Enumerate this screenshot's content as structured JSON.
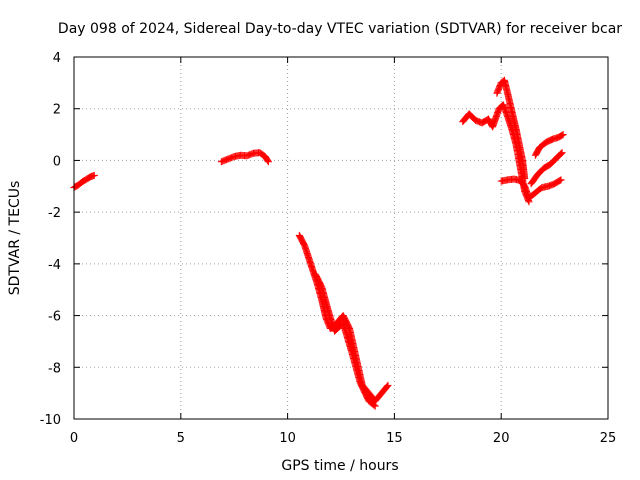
{
  "chart_data": {
    "type": "scatter",
    "title": "Day 098 of 2024, Sidereal Day-to-day VTEC variation (SDTVAR) for receiver bcar",
    "xlabel": "GPS time / hours",
    "ylabel": "SDTVAR / TECUs",
    "xlim": [
      0,
      25
    ],
    "ylim": [
      -10,
      4
    ],
    "xticks": [
      "0",
      "5",
      "10",
      "15",
      "20",
      "25"
    ],
    "yticks": [
      "4",
      "2",
      "0",
      "-2",
      "-4",
      "-6",
      "-8",
      "-10"
    ],
    "grid": true,
    "marker": "plus",
    "color": "#ff0000",
    "series": [
      {
        "name": "bcar",
        "segments": [
          [
            [
              0.0,
              -1.05
            ],
            [
              0.2,
              -0.95
            ],
            [
              0.4,
              -0.82
            ],
            [
              0.6,
              -0.72
            ],
            [
              0.8,
              -0.62
            ],
            [
              0.95,
              -0.58
            ]
          ],
          [
            [
              6.9,
              -0.05
            ],
            [
              7.2,
              0.05
            ],
            [
              7.5,
              0.15
            ],
            [
              7.8,
              0.2
            ],
            [
              8.1,
              0.18
            ],
            [
              8.4,
              0.28
            ],
            [
              8.7,
              0.3
            ],
            [
              8.95,
              0.15
            ],
            [
              9.1,
              -0.05
            ]
          ],
          [
            [
              10.55,
              -2.9
            ],
            [
              10.8,
              -3.3
            ],
            [
              11.0,
              -3.8
            ],
            [
              11.2,
              -4.3
            ],
            [
              11.4,
              -4.8
            ],
            [
              11.6,
              -5.4
            ],
            [
              11.8,
              -6.1
            ],
            [
              12.0,
              -6.5
            ],
            [
              12.3,
              -6.3
            ],
            [
              12.6,
              -6.0
            ],
            [
              12.9,
              -6.5
            ],
            [
              13.2,
              -7.6
            ],
            [
              13.5,
              -8.7
            ],
            [
              13.8,
              -9.0
            ],
            [
              14.1,
              -9.3
            ],
            [
              14.4,
              -9.0
            ],
            [
              14.7,
              -8.7
            ]
          ],
          [
            [
              11.3,
              -4.4
            ],
            [
              11.6,
              -4.9
            ],
            [
              11.9,
              -5.8
            ],
            [
              12.2,
              -6.6
            ],
            [
              12.6,
              -6.3
            ],
            [
              13.0,
              -7.4
            ],
            [
              13.4,
              -8.6
            ],
            [
              13.8,
              -9.3
            ],
            [
              14.1,
              -9.5
            ]
          ],
          [
            [
              18.2,
              1.5
            ],
            [
              18.5,
              1.8
            ],
            [
              18.8,
              1.55
            ],
            [
              19.1,
              1.45
            ],
            [
              19.4,
              1.6
            ],
            [
              19.6,
              1.3
            ],
            [
              19.9,
              2.0
            ],
            [
              20.1,
              2.15
            ],
            [
              20.3,
              1.7
            ],
            [
              20.5,
              1.2
            ],
            [
              20.7,
              0.6
            ],
            [
              20.9,
              -0.3
            ],
            [
              21.1,
              -1.2
            ],
            [
              21.3,
              -1.6
            ]
          ],
          [
            [
              19.8,
              2.6
            ],
            [
              20.0,
              3.0
            ],
            [
              20.15,
              3.1
            ],
            [
              20.3,
              2.6
            ],
            [
              20.5,
              1.9
            ],
            [
              20.7,
              1.2
            ],
            [
              20.85,
              0.6
            ],
            [
              21.0,
              0.0
            ],
            [
              21.1,
              -0.7
            ]
          ],
          [
            [
              20.0,
              -0.8
            ],
            [
              20.3,
              -0.75
            ],
            [
              20.6,
              -0.72
            ],
            [
              20.9,
              -0.78
            ],
            [
              21.1,
              -1.0
            ],
            [
              21.3,
              -1.45
            ],
            [
              21.6,
              -1.25
            ],
            [
              21.9,
              -1.05
            ],
            [
              22.2,
              -1.0
            ],
            [
              22.5,
              -0.9
            ],
            [
              22.8,
              -0.75
            ]
          ],
          [
            [
              21.4,
              -0.9
            ],
            [
              21.7,
              -0.55
            ],
            [
              22.0,
              -0.3
            ],
            [
              22.3,
              -0.15
            ],
            [
              22.6,
              0.1
            ],
            [
              22.85,
              0.3
            ]
          ],
          [
            [
              21.6,
              0.2
            ],
            [
              21.8,
              0.5
            ],
            [
              22.1,
              0.7
            ],
            [
              22.4,
              0.82
            ],
            [
              22.7,
              0.9
            ],
            [
              22.9,
              1.0
            ]
          ]
        ]
      }
    ]
  }
}
